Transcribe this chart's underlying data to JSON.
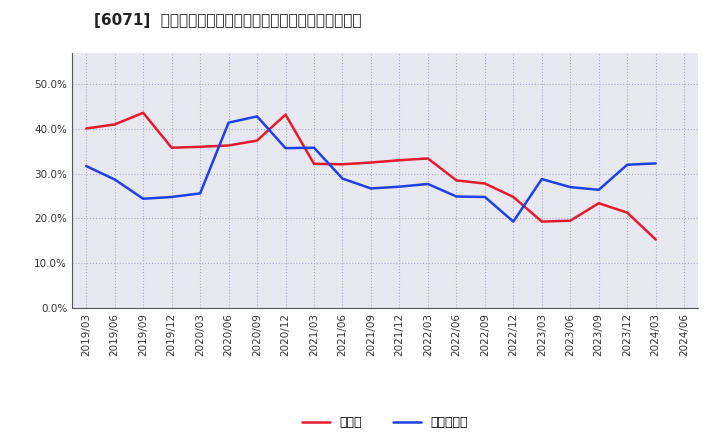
{
  "title": "[6071]  現預金、有利子負債の総資産に対する比率の推移",
  "x_labels": [
    "2019/03",
    "2019/06",
    "2019/09",
    "2019/12",
    "2020/03",
    "2020/06",
    "2020/09",
    "2020/12",
    "2021/03",
    "2021/06",
    "2021/09",
    "2021/12",
    "2022/03",
    "2022/06",
    "2022/09",
    "2022/12",
    "2023/03",
    "2023/06",
    "2023/09",
    "2023/12",
    "2024/03",
    "2024/06"
  ],
  "cash": [
    0.401,
    0.41,
    0.436,
    0.358,
    0.36,
    0.363,
    0.374,
    0.432,
    0.322,
    0.321,
    0.325,
    0.33,
    0.334,
    0.285,
    0.278,
    0.248,
    0.193,
    0.195,
    0.234,
    0.213,
    0.153,
    null
  ],
  "debt": [
    0.317,
    0.287,
    0.244,
    0.248,
    0.256,
    0.414,
    0.428,
    0.357,
    0.358,
    0.289,
    0.267,
    0.271,
    0.277,
    0.249,
    0.248,
    0.193,
    0.288,
    0.27,
    0.264,
    0.32,
    0.323,
    null
  ],
  "cash_color": "#e8192c",
  "debt_color": "#1f40e6",
  "background_color": "#ffffff",
  "plot_bg_color": "#e8e8f0",
  "grid_color": "#aaaacc",
  "legend_cash": "現預金",
  "legend_debt": "有利子負債",
  "ylim": [
    0.0,
    0.57
  ],
  "yticks": [
    0.0,
    0.1,
    0.2,
    0.3,
    0.4,
    0.5
  ],
  "title_fontsize": 11,
  "legend_fontsize": 9,
  "tick_fontsize": 7.5
}
